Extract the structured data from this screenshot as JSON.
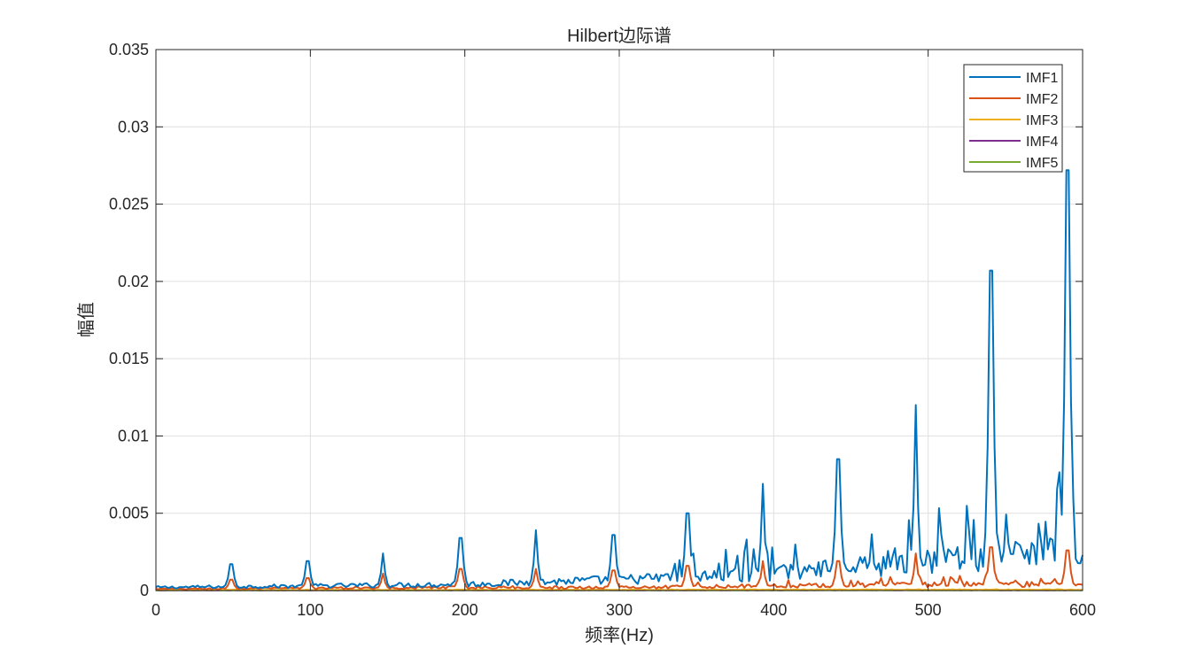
{
  "chart_data": {
    "type": "line",
    "title": "Hilbert边际谱",
    "xlabel": "频率(Hz)",
    "ylabel": "幅值",
    "xlim": [
      0,
      600
    ],
    "ylim": [
      0,
      0.035
    ],
    "xticks": [
      0,
      100,
      200,
      300,
      400,
      500,
      600
    ],
    "xtick_labels": [
      "0",
      "100",
      "200",
      "300",
      "400",
      "500",
      "600"
    ],
    "yticks": [
      0,
      0.005,
      0.01,
      0.015,
      0.02,
      0.025,
      0.03,
      0.035
    ],
    "ytick_labels": [
      "0",
      "0.005",
      "0.01",
      "0.015",
      "0.02",
      "0.025",
      "0.03",
      "0.035"
    ],
    "grid": true,
    "legend_position": "top-right",
    "series": [
      {
        "name": "IMF1",
        "color": "#0072BD",
        "peaks": [
          [
            49,
            0.0017
          ],
          [
            98,
            0.0019
          ],
          [
            147,
            0.0024
          ],
          [
            197,
            0.0034
          ],
          [
            246,
            0.0039
          ],
          [
            296,
            0.0036
          ],
          [
            344,
            0.005
          ],
          [
            393,
            0.0069
          ],
          [
            442,
            0.0085
          ],
          [
            492,
            0.012
          ],
          [
            541,
            0.0207
          ],
          [
            590,
            0.0272
          ]
        ],
        "baseline": [
          [
            0,
            0.0002
          ],
          [
            100,
            0.0003
          ],
          [
            200,
            0.0004
          ],
          [
            300,
            0.0007
          ],
          [
            400,
            0.0011
          ],
          [
            450,
            0.0015
          ],
          [
            500,
            0.0018
          ],
          [
            550,
            0.0022
          ],
          [
            600,
            0.0026
          ]
        ]
      },
      {
        "name": "IMF2",
        "color": "#D95319",
        "peaks": [
          [
            49,
            0.0007
          ],
          [
            98,
            0.0008
          ],
          [
            147,
            0.0011
          ],
          [
            197,
            0.0014
          ],
          [
            246,
            0.0014
          ],
          [
            296,
            0.0013
          ],
          [
            344,
            0.0016
          ],
          [
            393,
            0.0019
          ],
          [
            442,
            0.0019
          ],
          [
            492,
            0.0024
          ],
          [
            541,
            0.0028
          ],
          [
            590,
            0.0026
          ]
        ],
        "baseline": [
          [
            0,
            0.0001
          ],
          [
            200,
            0.0002
          ],
          [
            300,
            0.0002
          ],
          [
            400,
            0.0003
          ],
          [
            500,
            0.0004
          ],
          [
            600,
            0.0004
          ]
        ]
      },
      {
        "name": "IMF3",
        "color": "#EDB120",
        "peaks": [],
        "baseline": [
          [
            0,
            4e-05
          ],
          [
            300,
            5e-05
          ],
          [
            600,
            6e-05
          ]
        ]
      },
      {
        "name": "IMF4",
        "color": "#7E2F8E",
        "peaks": [],
        "baseline": [
          [
            0,
            2e-05
          ],
          [
            600,
            3e-05
          ]
        ]
      },
      {
        "name": "IMF5",
        "color": "#77AC30",
        "peaks": [],
        "baseline": [
          [
            0,
            1e-05
          ],
          [
            600,
            2e-05
          ]
        ]
      }
    ]
  }
}
